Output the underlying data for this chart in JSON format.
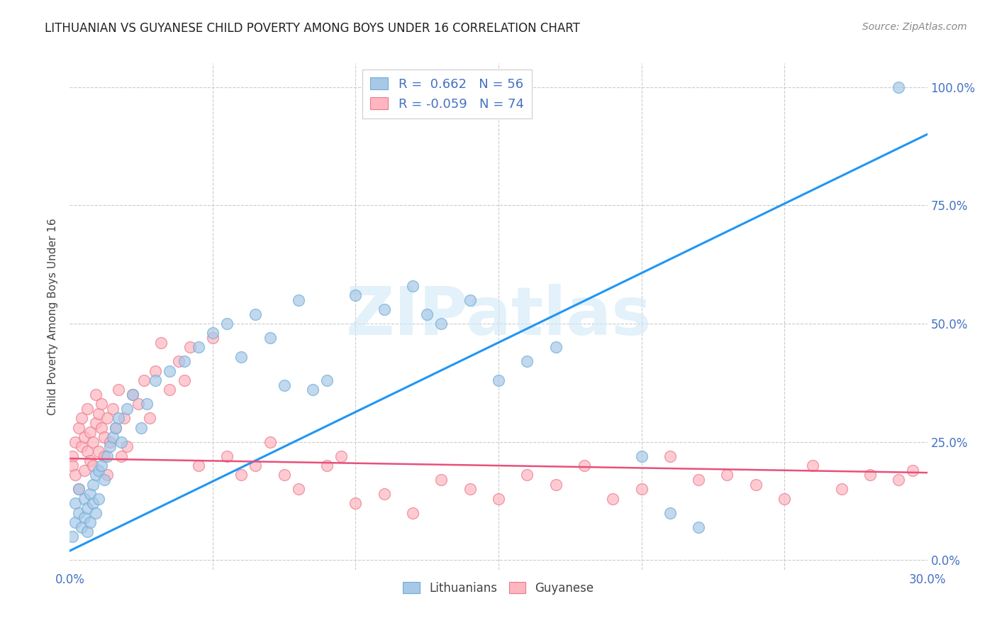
{
  "title": "LITHUANIAN VS GUYANESE CHILD POVERTY AMONG BOYS UNDER 16 CORRELATION CHART",
  "source": "Source: ZipAtlas.com",
  "ylabel": "Child Poverty Among Boys Under 16",
  "x_min": 0.0,
  "x_max": 0.3,
  "y_min": -0.02,
  "y_max": 1.05,
  "lithuanian_color": "#a8c8e8",
  "lithuanian_edge": "#6baed6",
  "guyanese_color": "#ffb6c1",
  "guyanese_edge": "#e87a8a",
  "lith_line_color": "#2196F3",
  "guy_line_color": "#e8507a",
  "watermark": "ZIPatlas",
  "watermark_color": "#d0e8f8",
  "lithuanian_R": 0.662,
  "lithuanian_N": 56,
  "guyanese_R": -0.059,
  "guyanese_N": 74,
  "lith_line_x0": 0.0,
  "lith_line_y0": 0.02,
  "lith_line_x1": 0.3,
  "lith_line_y1": 0.9,
  "guy_line_x0": 0.0,
  "guy_line_y0": 0.215,
  "guy_line_x1": 0.3,
  "guy_line_y1": 0.185,
  "lithuanian_scatter_x": [
    0.001,
    0.002,
    0.002,
    0.003,
    0.003,
    0.004,
    0.005,
    0.005,
    0.006,
    0.006,
    0.007,
    0.007,
    0.008,
    0.008,
    0.009,
    0.009,
    0.01,
    0.01,
    0.011,
    0.012,
    0.013,
    0.014,
    0.015,
    0.016,
    0.017,
    0.018,
    0.02,
    0.022,
    0.025,
    0.027,
    0.03,
    0.035,
    0.04,
    0.045,
    0.05,
    0.055,
    0.06,
    0.065,
    0.07,
    0.075,
    0.08,
    0.085,
    0.09,
    0.1,
    0.11,
    0.12,
    0.125,
    0.13,
    0.14,
    0.15,
    0.16,
    0.17,
    0.2,
    0.21,
    0.22,
    0.29
  ],
  "lithuanian_scatter_y": [
    0.05,
    0.08,
    0.12,
    0.1,
    0.15,
    0.07,
    0.09,
    0.13,
    0.11,
    0.06,
    0.14,
    0.08,
    0.12,
    0.16,
    0.1,
    0.18,
    0.13,
    0.19,
    0.2,
    0.17,
    0.22,
    0.24,
    0.26,
    0.28,
    0.3,
    0.25,
    0.32,
    0.35,
    0.28,
    0.33,
    0.38,
    0.4,
    0.42,
    0.45,
    0.48,
    0.5,
    0.43,
    0.52,
    0.47,
    0.37,
    0.55,
    0.36,
    0.38,
    0.56,
    0.53,
    0.58,
    0.52,
    0.5,
    0.55,
    0.38,
    0.42,
    0.45,
    0.22,
    0.1,
    0.07,
    1.0
  ],
  "guyanese_scatter_x": [
    0.001,
    0.001,
    0.002,
    0.002,
    0.003,
    0.003,
    0.004,
    0.004,
    0.005,
    0.005,
    0.006,
    0.006,
    0.007,
    0.007,
    0.008,
    0.008,
    0.009,
    0.009,
    0.01,
    0.01,
    0.011,
    0.011,
    0.012,
    0.012,
    0.013,
    0.013,
    0.014,
    0.015,
    0.016,
    0.017,
    0.018,
    0.019,
    0.02,
    0.022,
    0.024,
    0.026,
    0.028,
    0.03,
    0.032,
    0.035,
    0.038,
    0.04,
    0.042,
    0.045,
    0.05,
    0.055,
    0.06,
    0.065,
    0.07,
    0.075,
    0.08,
    0.09,
    0.095,
    0.1,
    0.11,
    0.12,
    0.13,
    0.14,
    0.15,
    0.16,
    0.17,
    0.18,
    0.19,
    0.2,
    0.21,
    0.22,
    0.23,
    0.24,
    0.25,
    0.26,
    0.27,
    0.28,
    0.29,
    0.295
  ],
  "guyanese_scatter_y": [
    0.22,
    0.2,
    0.25,
    0.18,
    0.28,
    0.15,
    0.24,
    0.3,
    0.26,
    0.19,
    0.23,
    0.32,
    0.21,
    0.27,
    0.25,
    0.2,
    0.35,
    0.29,
    0.31,
    0.23,
    0.28,
    0.33,
    0.26,
    0.22,
    0.3,
    0.18,
    0.25,
    0.32,
    0.28,
    0.36,
    0.22,
    0.3,
    0.24,
    0.35,
    0.33,
    0.38,
    0.3,
    0.4,
    0.46,
    0.36,
    0.42,
    0.38,
    0.45,
    0.2,
    0.47,
    0.22,
    0.18,
    0.2,
    0.25,
    0.18,
    0.15,
    0.2,
    0.22,
    0.12,
    0.14,
    0.1,
    0.17,
    0.15,
    0.13,
    0.18,
    0.16,
    0.2,
    0.13,
    0.15,
    0.22,
    0.17,
    0.18,
    0.16,
    0.13,
    0.2,
    0.15,
    0.18,
    0.17,
    0.19
  ]
}
